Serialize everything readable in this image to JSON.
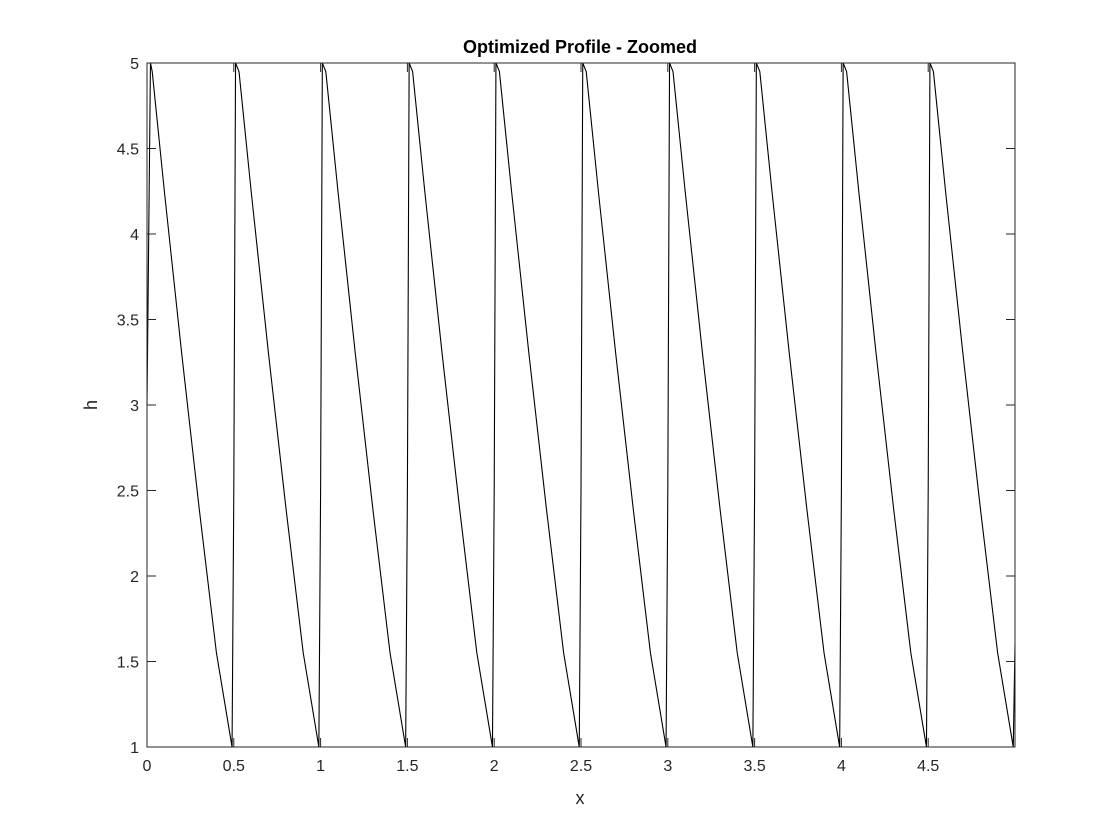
{
  "chart_data": {
    "type": "line",
    "title": "Optimized Profile - Zoomed",
    "xlabel": "x",
    "ylabel": "h",
    "xlim": [
      0,
      5
    ],
    "ylim": [
      1,
      5
    ],
    "x_ticks": [
      0,
      0.5,
      1,
      1.5,
      2,
      2.5,
      3,
      3.5,
      4,
      4.5
    ],
    "x_tick_labels": [
      "0",
      "0.5",
      "1",
      "1.5",
      "2",
      "2.5",
      "3",
      "3.5",
      "4",
      "4.5"
    ],
    "y_ticks": [
      1,
      1.5,
      2,
      2.5,
      3,
      3.5,
      4,
      4.5,
      5
    ],
    "y_tick_labels": [
      "1",
      "1.5",
      "2",
      "2.5",
      "3",
      "3.5",
      "4",
      "4.5",
      "5"
    ],
    "grid": false,
    "legend": "none",
    "line_color": "#000000",
    "series": [
      {
        "x": [
          0,
          0.02,
          0.03,
          0.1,
          0.2,
          0.3,
          0.4,
          0.49,
          0.5,
          0.51,
          0.53,
          0.6,
          0.7,
          0.8,
          0.9,
          0.99,
          1.0,
          1.01,
          1.03,
          1.1,
          1.2,
          1.3,
          1.4,
          1.49,
          1.5,
          1.51,
          1.53,
          1.6,
          1.7,
          1.8,
          1.9,
          1.99,
          2.0,
          2.01,
          2.03,
          2.1,
          2.2,
          2.3,
          2.4,
          2.49,
          2.5,
          2.51,
          2.53,
          2.6,
          2.7,
          2.8,
          2.9,
          2.99,
          3.0,
          3.01,
          3.03,
          3.1,
          3.2,
          3.3,
          3.4,
          3.49,
          3.5,
          3.51,
          3.53,
          3.6,
          3.7,
          3.8,
          3.9,
          3.99,
          4.0,
          4.01,
          4.03,
          4.1,
          4.2,
          4.3,
          4.4,
          4.49,
          4.5,
          4.51,
          4.53,
          4.6,
          4.7,
          4.8,
          4.9,
          4.99,
          5.0
        ],
        "y": [
          3.0,
          5.0,
          4.95,
          4.25,
          3.3,
          2.4,
          1.55,
          1.0,
          2.5,
          5.0,
          4.95,
          4.25,
          3.3,
          2.4,
          1.55,
          1.0,
          2.5,
          5.0,
          4.95,
          4.25,
          3.3,
          2.4,
          1.55,
          1.0,
          2.5,
          5.0,
          4.95,
          4.25,
          3.3,
          2.4,
          1.55,
          1.0,
          2.5,
          5.0,
          4.95,
          4.25,
          3.3,
          2.4,
          1.55,
          1.0,
          2.5,
          5.0,
          4.95,
          4.25,
          3.3,
          2.4,
          1.55,
          1.0,
          2.5,
          5.0,
          4.95,
          4.25,
          3.3,
          2.4,
          1.55,
          1.0,
          2.5,
          5.0,
          4.95,
          4.25,
          3.3,
          2.4,
          1.55,
          1.0,
          2.5,
          5.0,
          4.95,
          4.25,
          3.3,
          2.4,
          1.55,
          1.0,
          2.5,
          5.0,
          4.95,
          4.25,
          3.3,
          2.4,
          1.55,
          1.0,
          1.6
        ]
      }
    ]
  }
}
